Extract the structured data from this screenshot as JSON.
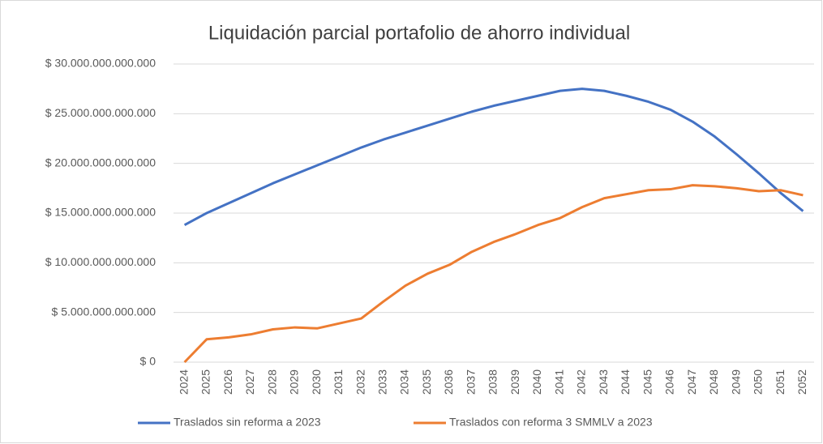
{
  "chart_data": {
    "type": "line",
    "title": "Liquidación parcial portafolio de ahorro individual",
    "categories": [
      "2024",
      "2025",
      "2026",
      "2027",
      "2028",
      "2029",
      "2030",
      "2031",
      "2032",
      "2033",
      "2034",
      "2035",
      "2036",
      "2037",
      "2038",
      "2039",
      "2040",
      "2041",
      "2042",
      "2043",
      "2044",
      "2045",
      "2046",
      "2047",
      "2048",
      "2049",
      "2050",
      "2051",
      "2052"
    ],
    "series": [
      {
        "name": "Traslados sin reforma a 2023",
        "color": "#4472c4",
        "values": [
          13800000000000,
          15000000000000,
          16000000000000,
          17000000000000,
          18000000000000,
          18900000000000,
          19800000000000,
          20700000000000,
          21600000000000,
          22400000000000,
          23100000000000,
          23800000000000,
          24500000000000,
          25200000000000,
          25800000000000,
          26300000000000,
          26800000000000,
          27300000000000,
          27500000000000,
          27300000000000,
          26800000000000,
          26200000000000,
          25400000000000,
          24200000000000,
          22700000000000,
          20900000000000,
          19000000000000,
          17000000000000,
          15200000000000
        ]
      },
      {
        "name": "Traslados con reforma 3 SMMLV a 2023",
        "color": "#ed7d31",
        "values": [
          0,
          2300000000000,
          2500000000000,
          2800000000000,
          3300000000000,
          3500000000000,
          3400000000000,
          3900000000000,
          4400000000000,
          6100000000000,
          7700000000000,
          8900000000000,
          9800000000000,
          11100000000000,
          12100000000000,
          12900000000000,
          13800000000000,
          14500000000000,
          15600000000000,
          16500000000000,
          16900000000000,
          17300000000000,
          17400000000000,
          17800000000000,
          17700000000000,
          17500000000000,
          17200000000000,
          17300000000000,
          16800000000000
        ]
      }
    ],
    "ylim": [
      0,
      30000000000000
    ],
    "yticks": [
      {
        "value": 0,
        "label": "$ 0"
      },
      {
        "value": 5000000000000,
        "label": "$ 5.000.000.000.000"
      },
      {
        "value": 10000000000000,
        "label": "$ 10.000.000.000.000"
      },
      {
        "value": 15000000000000,
        "label": "$ 15.000.000.000.000"
      },
      {
        "value": 20000000000000,
        "label": "$ 20.000.000.000.000"
      },
      {
        "value": 25000000000000,
        "label": "$ 25.000.000.000.000"
      },
      {
        "value": 30000000000000,
        "label": "$ 30.000.000.000.000"
      }
    ],
    "grid": true,
    "legend": "bottom"
  }
}
